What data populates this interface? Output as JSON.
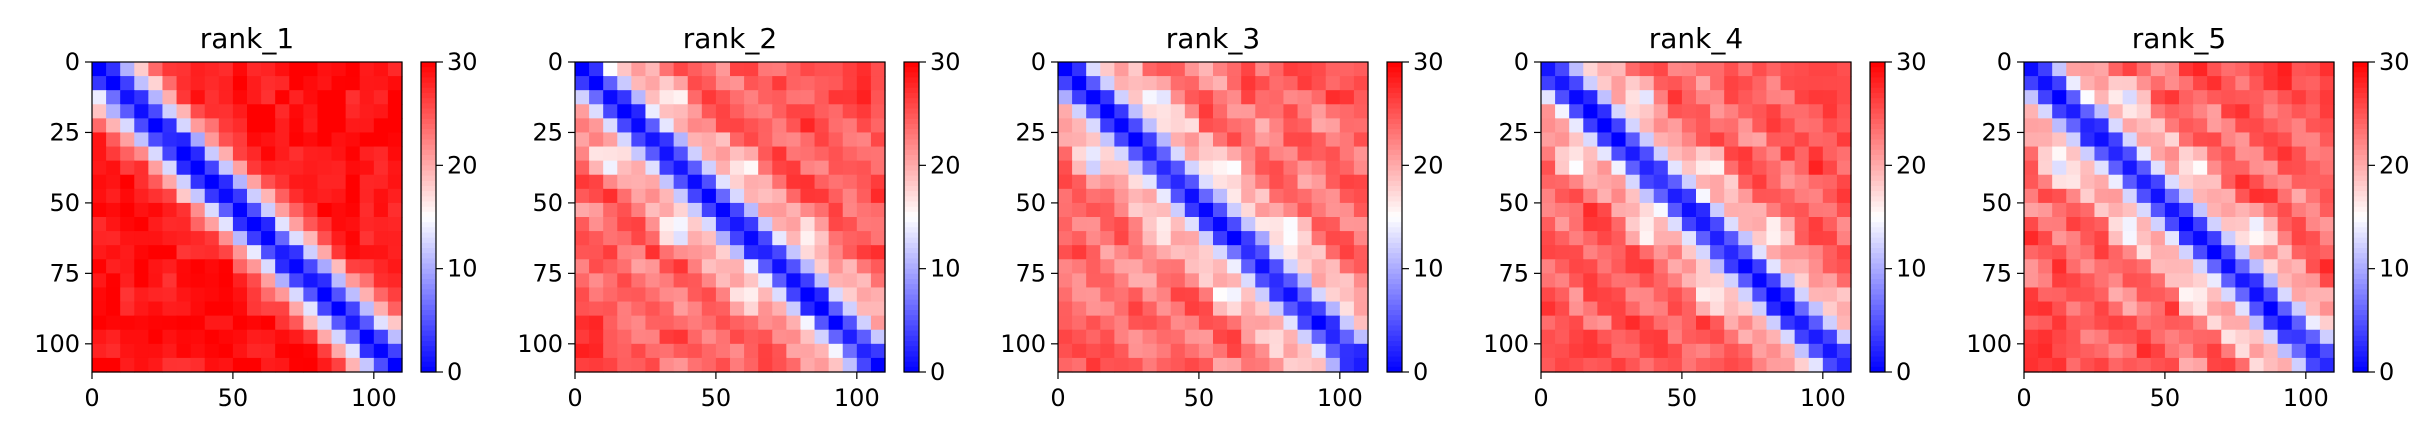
{
  "chart_data": [
    {
      "type": "heatmap",
      "title": "rank_1",
      "matrix_size": 110,
      "xlim": [
        0,
        110
      ],
      "ylim": [
        110,
        0
      ],
      "xticks": [
        0,
        50,
        100
      ],
      "yticks": [
        0,
        25,
        50,
        75,
        100
      ],
      "colorbar": {
        "cmap": "bwr",
        "vmin": 0,
        "vmax": 30,
        "ticks": [
          0,
          10,
          20,
          30
        ]
      },
      "pattern": {
        "diagonal_band_width": 10,
        "off_diagonal_level": 29,
        "stripes": [],
        "blobs": []
      }
    },
    {
      "type": "heatmap",
      "title": "rank_2",
      "matrix_size": 110,
      "xlim": [
        0,
        110
      ],
      "ylim": [
        110,
        0
      ],
      "xticks": [
        0,
        50,
        100
      ],
      "yticks": [
        0,
        25,
        50,
        75,
        100
      ],
      "colorbar": {
        "cmap": "bwr",
        "vmin": 0,
        "vmax": 30,
        "ticks": [
          0,
          10,
          20,
          30
        ]
      },
      "pattern": {
        "diagonal_band_width": 9,
        "off_diagonal_level": 26,
        "stripes": [
          {
            "offset": 24,
            "level": 17
          },
          {
            "offset": 48,
            "level": 19
          },
          {
            "offset": 72,
            "level": 20
          }
        ],
        "blobs": [
          [
            36,
            12
          ],
          [
            12,
            36
          ],
          [
            60,
            36
          ],
          [
            36,
            60
          ],
          [
            84,
            60
          ],
          [
            60,
            84
          ]
        ]
      }
    },
    {
      "type": "heatmap",
      "title": "rank_3",
      "matrix_size": 110,
      "xlim": [
        0,
        110
      ],
      "ylim": [
        110,
        0
      ],
      "xticks": [
        0,
        50,
        100
      ],
      "yticks": [
        0,
        25,
        50,
        75,
        100
      ],
      "colorbar": {
        "cmap": "bwr",
        "vmin": 0,
        "vmax": 30,
        "ticks": [
          0,
          10,
          20,
          30
        ]
      },
      "pattern": {
        "diagonal_band_width": 9,
        "off_diagonal_level": 25,
        "stripes": [
          {
            "offset": 24,
            "level": 16
          },
          {
            "offset": 48,
            "level": 18
          },
          {
            "offset": 72,
            "level": 19
          }
        ],
        "blobs": [
          [
            12,
            36
          ],
          [
            36,
            12
          ],
          [
            60,
            36
          ],
          [
            36,
            60
          ],
          [
            84,
            60
          ],
          [
            60,
            84
          ]
        ]
      }
    },
    {
      "type": "heatmap",
      "title": "rank_4",
      "matrix_size": 110,
      "xlim": [
        0,
        110
      ],
      "ylim": [
        110,
        0
      ],
      "xticks": [
        0,
        50,
        100
      ],
      "yticks": [
        0,
        25,
        50,
        75,
        100
      ],
      "colorbar": {
        "cmap": "bwr",
        "vmin": 0,
        "vmax": 30,
        "ticks": [
          0,
          10,
          20,
          30
        ]
      },
      "pattern": {
        "diagonal_band_width": 9,
        "off_diagonal_level": 26,
        "stripes": [
          {
            "offset": 24,
            "level": 17
          },
          {
            "offset": 48,
            "level": 19
          },
          {
            "offset": 72,
            "level": 20
          }
        ],
        "blobs": [
          [
            36,
            12
          ],
          [
            12,
            36
          ],
          [
            60,
            36
          ],
          [
            36,
            60
          ],
          [
            84,
            60
          ],
          [
            60,
            84
          ]
        ]
      }
    },
    {
      "type": "heatmap",
      "title": "rank_5",
      "matrix_size": 110,
      "xlim": [
        0,
        110
      ],
      "ylim": [
        110,
        0
      ],
      "xticks": [
        0,
        50,
        100
      ],
      "yticks": [
        0,
        25,
        50,
        75,
        100
      ],
      "colorbar": {
        "cmap": "bwr",
        "vmin": 0,
        "vmax": 30,
        "ticks": [
          0,
          10,
          20,
          30
        ]
      },
      "pattern": {
        "diagonal_band_width": 9,
        "off_diagonal_level": 26,
        "stripes": [
          {
            "offset": 24,
            "level": 15
          },
          {
            "offset": 48,
            "level": 18
          },
          {
            "offset": 72,
            "level": 20
          }
        ],
        "blobs": [
          [
            36,
            12
          ],
          [
            12,
            36
          ],
          [
            60,
            36
          ],
          [
            36,
            60
          ],
          [
            84,
            60
          ],
          [
            60,
            84
          ],
          [
            38,
            12
          ],
          [
            12,
            38
          ]
        ]
      }
    }
  ]
}
